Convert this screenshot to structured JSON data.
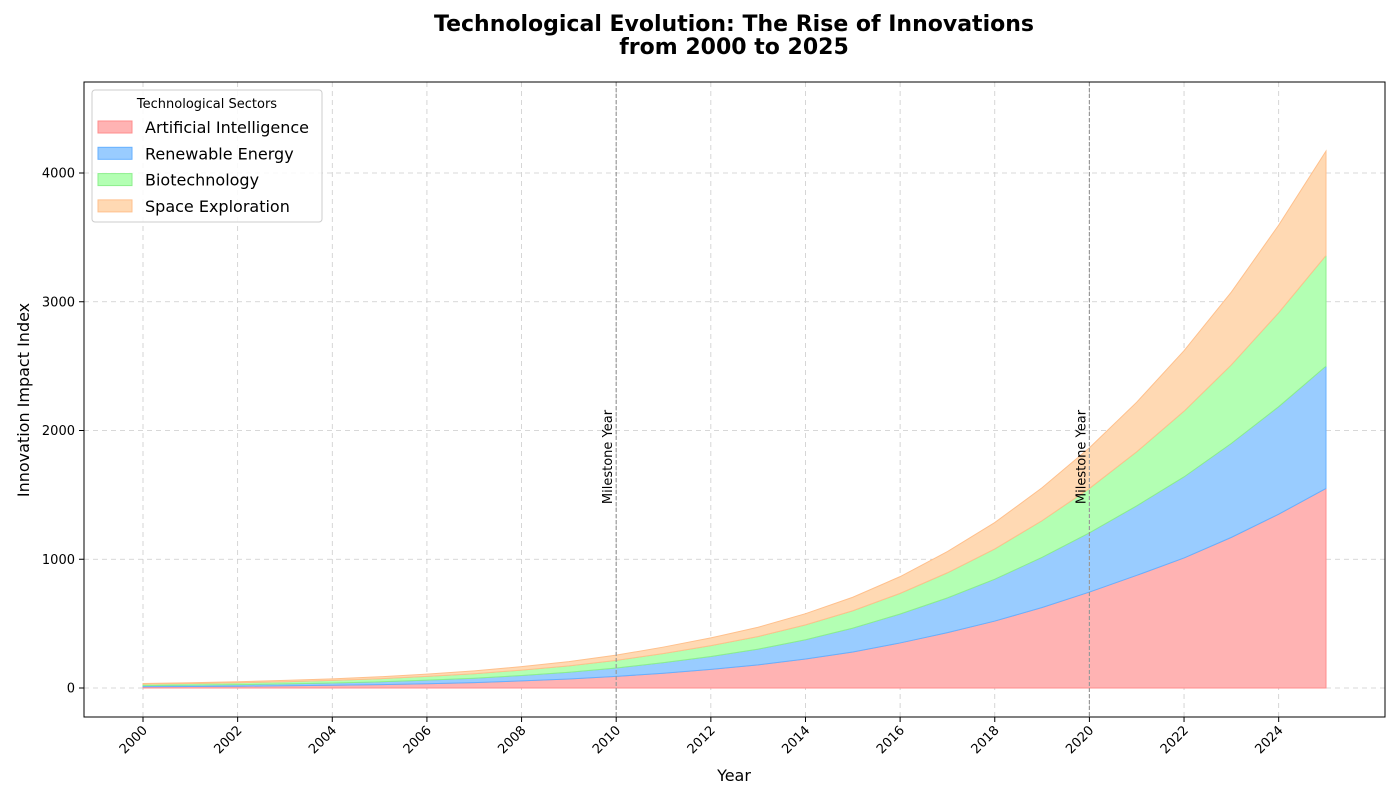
{
  "chart_data": {
    "type": "area",
    "title": [
      "Technological Evolution: The Rise of Innovations",
      "from 2000 to 2025"
    ],
    "xlabel": "Year",
    "ylabel": "Innovation Impact Index",
    "x": [
      2000,
      2001,
      2002,
      2003,
      2004,
      2005,
      2006,
      2007,
      2008,
      2009,
      2010,
      2011,
      2012,
      2013,
      2014,
      2015,
      2016,
      2017,
      2018,
      2019,
      2020,
      2021,
      2022,
      2023,
      2024,
      2025
    ],
    "xlim": [
      1998.75,
      2026.25
    ],
    "ylim": [
      -220,
      4700
    ],
    "xticks": [
      "2000",
      "2002",
      "2004",
      "2006",
      "2008",
      "2010",
      "2012",
      "2014",
      "2016",
      "2018",
      "2020",
      "2022",
      "2024"
    ],
    "yticks": [
      "0",
      "1000",
      "2000",
      "3000",
      "4000"
    ],
    "stacked": true,
    "grid": true,
    "series": [
      {
        "name": "Artificial Intelligence",
        "color": "#ffb3b3",
        "edge": "#ff8c8c",
        "values": [
          10,
          12,
          14,
          17,
          21,
          26,
          33,
          42,
          55,
          70,
          90,
          115,
          145,
          180,
          225,
          280,
          350,
          430,
          520,
          625,
          745,
          875,
          1010,
          1170,
          1350,
          1550
        ]
      },
      {
        "name": "Renewable Energy",
        "color": "#99ccff",
        "edge": "#66b0ff",
        "values": [
          8,
          10,
          12,
          15,
          18,
          22,
          28,
          34,
          42,
          52,
          65,
          82,
          100,
          122,
          150,
          185,
          225,
          270,
          325,
          390,
          460,
          540,
          630,
          730,
          835,
          950
        ]
      },
      {
        "name": "Biotechnology",
        "color": "#b3ffb3",
        "edge": "#8cef8c",
        "values": [
          12,
          13,
          15,
          17,
          20,
          24,
          29,
          35,
          42,
          50,
          60,
          71,
          84,
          98,
          115,
          135,
          160,
          195,
          235,
          285,
          345,
          420,
          510,
          610,
          730,
          860
        ]
      },
      {
        "name": "Space Exploration",
        "color": "#ffd9b3",
        "edge": "#ffc08c",
        "values": [
          5,
          6,
          8,
          10,
          12,
          15,
          18,
          22,
          27,
          33,
          40,
          50,
          60,
          72,
          87,
          105,
          130,
          165,
          205,
          255,
          315,
          385,
          470,
          565,
          680,
          810
        ]
      }
    ],
    "annotations": [
      {
        "x": 2010,
        "text": "Milestone Year"
      },
      {
        "x": 2020,
        "text": "Milestone Year"
      }
    ],
    "legend": {
      "title": "Technological Sectors",
      "placement": "top-left"
    }
  }
}
